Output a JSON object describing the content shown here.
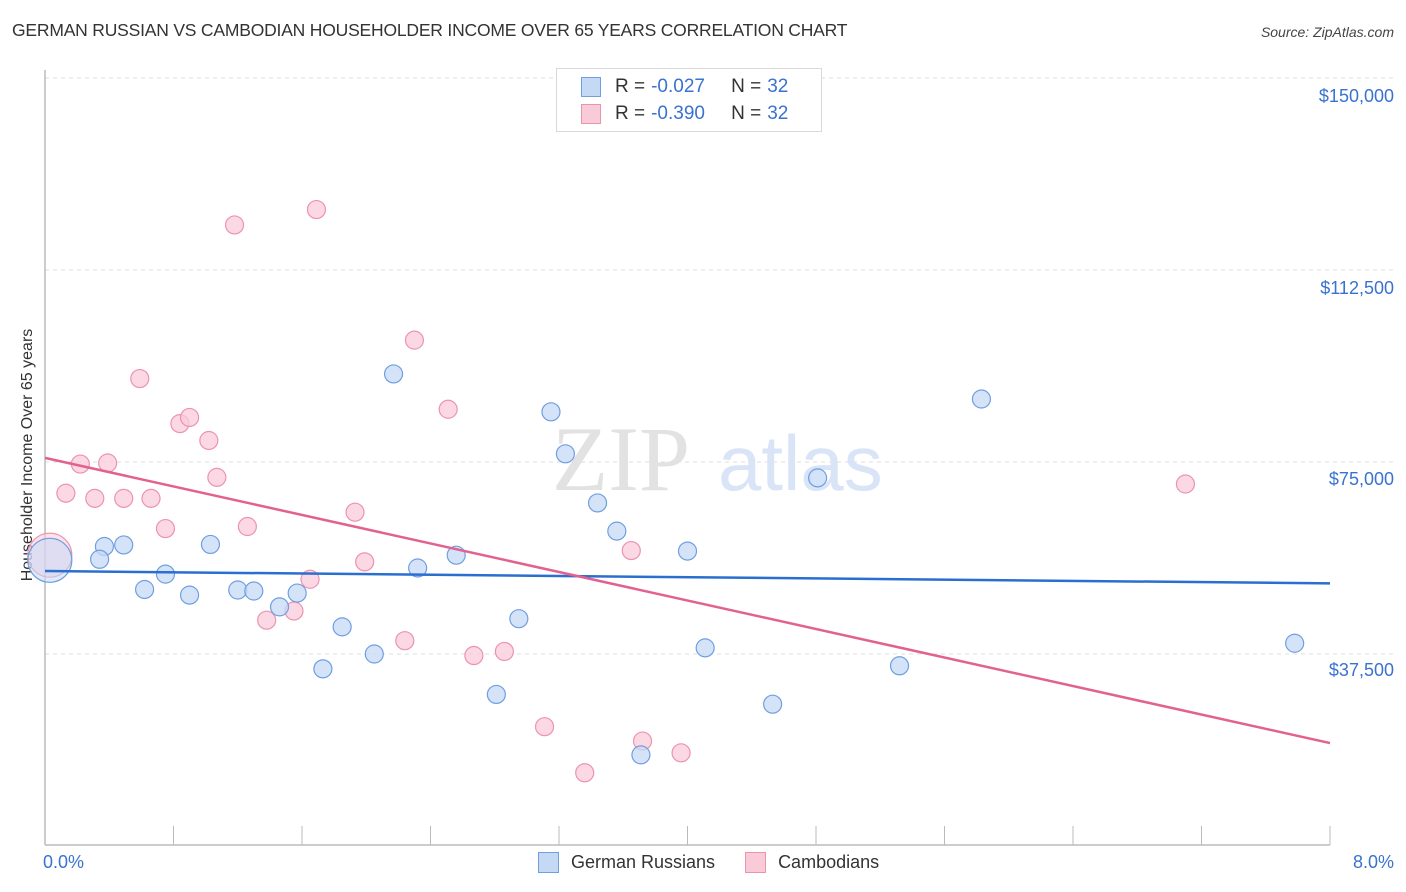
{
  "header": {
    "title": "GERMAN RUSSIAN VS CAMBODIAN HOUSEHOLDER INCOME OVER 65 YEARS CORRELATION CHART",
    "source": "Source: ZipAtlas.com"
  },
  "watermark": {
    "zip": "ZIP",
    "atlas": "atlas"
  },
  "colors": {
    "blue_fill": "#c5d9f5",
    "blue_stroke": "#6f9fe0",
    "blue_line": "#2a6fd0",
    "pink_fill": "#f9cbd9",
    "pink_stroke": "#ec93b0",
    "pink_line": "#e2618e",
    "tick_text": "#3a72d0",
    "grid": "#dddddd"
  },
  "legend": {
    "rows": [
      {
        "r_label": "R =",
        "r_value": "-0.027",
        "n_label": "N =",
        "n_value": "32"
      },
      {
        "r_label": "R =",
        "r_value": "-0.390",
        "n_label": "N =",
        "n_value": "32"
      }
    ],
    "series": [
      {
        "name": "German Russians"
      },
      {
        "name": "Cambodians"
      }
    ]
  },
  "axes": {
    "ylabel": "Householder Income Over 65 years",
    "y_ticks": [
      "$150,000",
      "$112,500",
      "$75,000",
      "$37,500"
    ],
    "x_ticks": [
      "0.0%",
      "8.0%"
    ]
  },
  "chart_data": {
    "type": "scatter",
    "title": "GERMAN RUSSIAN VS CAMBODIAN HOUSEHOLDER INCOME OVER 65 YEARS CORRELATION CHART",
    "xlabel": "",
    "ylabel": "Householder Income Over 65 years",
    "xlim": [
      0.0,
      8.0
    ],
    "ylim": [
      0,
      150000
    ],
    "x_unit": "%",
    "y_ticks": [
      37500,
      75000,
      112500,
      150000
    ],
    "grid": true,
    "legend_position": "top-center and bottom",
    "series": [
      {
        "name": "German Russians",
        "r": -0.027,
        "n": 32,
        "trend": {
          "x": [
            0.0,
            8.0
          ],
          "y": [
            53700,
            51300
          ]
        },
        "points": [
          [
            0.03,
            55800
          ],
          [
            0.37,
            58500
          ],
          [
            0.34,
            56000
          ],
          [
            0.49,
            58800
          ],
          [
            0.62,
            50100
          ],
          [
            0.75,
            53100
          ],
          [
            0.9,
            49000
          ],
          [
            1.03,
            58900
          ],
          [
            1.2,
            50000
          ],
          [
            1.3,
            49800
          ],
          [
            1.46,
            46700
          ],
          [
            1.57,
            49400
          ],
          [
            1.85,
            42800
          ],
          [
            1.73,
            34600
          ],
          [
            2.05,
            37500
          ],
          [
            2.17,
            92200
          ],
          [
            2.32,
            54300
          ],
          [
            2.56,
            56800
          ],
          [
            2.81,
            29600
          ],
          [
            2.95,
            44400
          ],
          [
            3.15,
            84800
          ],
          [
            3.24,
            76600
          ],
          [
            3.44,
            67000
          ],
          [
            3.56,
            61500
          ],
          [
            4.0,
            57600
          ],
          [
            4.11,
            38700
          ],
          [
            3.71,
            17800
          ],
          [
            4.53,
            27700
          ],
          [
            4.81,
            71900
          ],
          [
            5.32,
            35200
          ],
          [
            5.83,
            87300
          ],
          [
            7.78,
            39600
          ]
        ]
      },
      {
        "name": "Cambodians",
        "r": -0.39,
        "n": 32,
        "trend": {
          "x": [
            0.0,
            8.0
          ],
          "y": [
            75800,
            20100
          ]
        },
        "points": [
          [
            0.03,
            56800
          ],
          [
            0.13,
            68900
          ],
          [
            0.22,
            74600
          ],
          [
            0.31,
            67900
          ],
          [
            0.39,
            74800
          ],
          [
            0.49,
            67900
          ],
          [
            0.59,
            91300
          ],
          [
            0.66,
            67900
          ],
          [
            0.75,
            62000
          ],
          [
            0.84,
            82500
          ],
          [
            0.9,
            83700
          ],
          [
            1.02,
            79200
          ],
          [
            1.07,
            72000
          ],
          [
            1.18,
            121300
          ],
          [
            1.26,
            62400
          ],
          [
            1.38,
            44100
          ],
          [
            1.55,
            45900
          ],
          [
            1.65,
            52100
          ],
          [
            1.69,
            124300
          ],
          [
            1.93,
            65200
          ],
          [
            1.99,
            55500
          ],
          [
            2.24,
            40100
          ],
          [
            2.3,
            98800
          ],
          [
            2.51,
            85300
          ],
          [
            2.67,
            37200
          ],
          [
            2.86,
            38000
          ],
          [
            3.11,
            23300
          ],
          [
            3.36,
            14300
          ],
          [
            3.65,
            57700
          ],
          [
            3.72,
            20500
          ],
          [
            3.96,
            18200
          ],
          [
            7.1,
            70700
          ]
        ]
      }
    ]
  }
}
